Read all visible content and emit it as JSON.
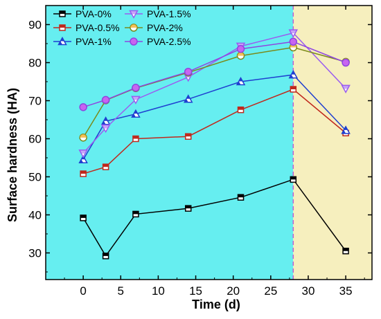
{
  "chart_data": {
    "type": "line",
    "xlabel": "Time (d)",
    "ylabel": "Surface hardness (HA)",
    "xlim": [
      -5,
      38.5
    ],
    "ylim": [
      23,
      95
    ],
    "xticks": [
      0,
      5,
      10,
      15,
      20,
      25,
      30,
      35
    ],
    "yticks": [
      30,
      40,
      50,
      60,
      70,
      80,
      90
    ],
    "grid": false,
    "legend_position": "top-left",
    "background_regions": [
      {
        "x_from": -5,
        "x_to": 28,
        "color": "#66eef0"
      },
      {
        "x_from": 28,
        "x_to": 38.5,
        "color": "#f6efbe"
      }
    ],
    "divider": {
      "x": 28,
      "color": "#c060d0",
      "style": "dashed"
    },
    "x": [
      0,
      3,
      7,
      14,
      21,
      28,
      35
    ],
    "series": [
      {
        "name": "PVA-0%",
        "color": "#000000",
        "fill": "#ffffff",
        "marker": "square",
        "values": [
          39.2,
          29.2,
          40.2,
          41.7,
          44.6,
          49.3,
          30.5
        ]
      },
      {
        "name": "PVA-0.5%",
        "color": "#c0281c",
        "fill": "#ffffff",
        "marker": "square",
        "values": [
          50.8,
          52.6,
          60.0,
          60.6,
          67.6,
          73.0,
          61.5
        ]
      },
      {
        "name": "PVA-1%",
        "color": "#1f3fd0",
        "fill": "#ffffff",
        "marker": "triangle-up",
        "values": [
          54.5,
          64.6,
          66.5,
          70.4,
          75.0,
          76.8,
          62.2
        ]
      },
      {
        "name": "PVA-1.5%",
        "color": "#9a5cf0",
        "fill": "#ffffff",
        "marker": "triangle-down",
        "values": [
          56.2,
          62.8,
          70.3,
          76.2,
          84.3,
          87.8,
          73.2
        ]
      },
      {
        "name": "PVA-2%",
        "color": "#7a8a1a",
        "fill": "#ffffff",
        "marker": "circle",
        "values": [
          60.3,
          70.1,
          73.3,
          77.4,
          81.8,
          84.0,
          80.2
        ]
      },
      {
        "name": "PVA-2.5%",
        "color": "#8f45e0",
        "fill": "#c864f0",
        "marker": "circle",
        "values": [
          68.3,
          70.2,
          73.4,
          77.6,
          83.6,
          85.5,
          80.0
        ]
      }
    ]
  }
}
